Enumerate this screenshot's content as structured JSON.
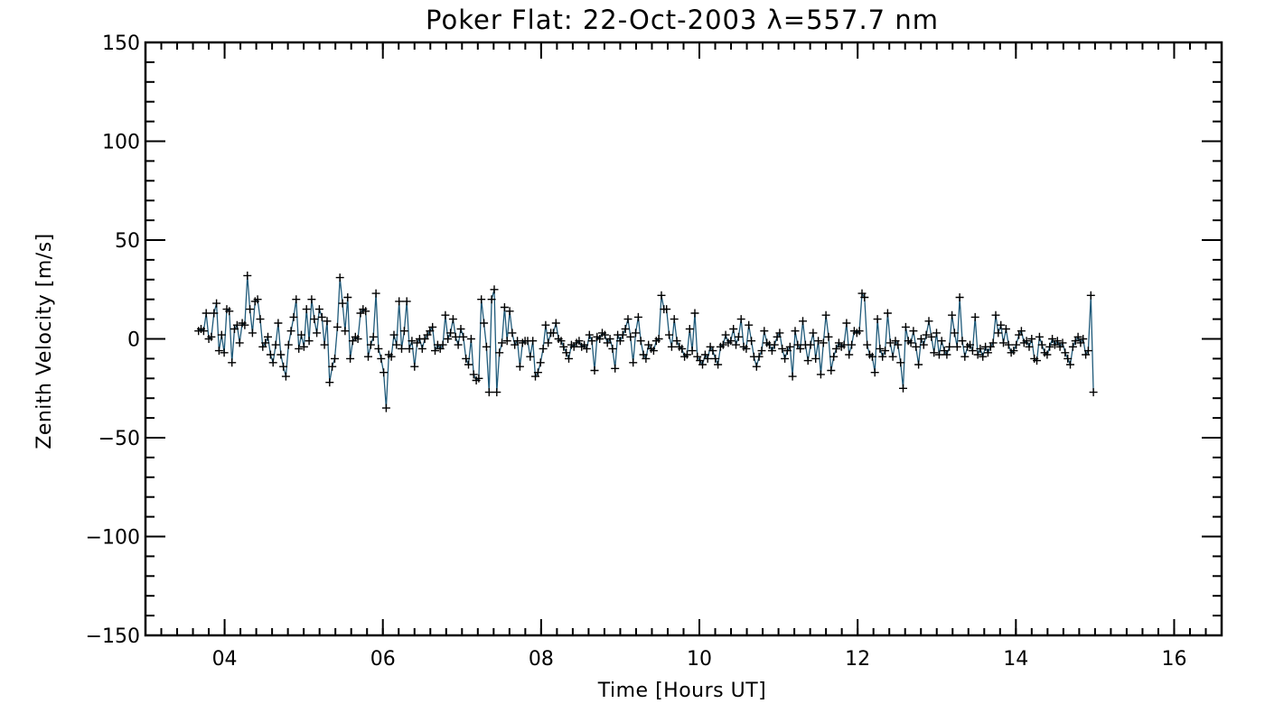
{
  "chart_data": {
    "type": "line",
    "title": "Poker Flat: 22-Oct-2003 λ=557.7 nm",
    "xlabel": "Time [Hours UT]",
    "ylabel": "Zenith Velocity [m/s]",
    "xlim": [
      3.0,
      16.6
    ],
    "ylim": [
      -150,
      150
    ],
    "x_ticks": [
      4,
      6,
      8,
      10,
      12,
      14,
      16
    ],
    "x_tick_labels": [
      "04",
      "06",
      "08",
      "10",
      "12",
      "14",
      "16"
    ],
    "y_ticks": [
      -150,
      -100,
      -50,
      0,
      50,
      100,
      150
    ],
    "y_tick_labels": [
      "−150",
      "−100",
      "−50",
      "0",
      "50",
      "100",
      "150"
    ],
    "x_minor_step": 0.2,
    "y_minor_step": 10,
    "grid": false,
    "marker": "plus",
    "series": [
      {
        "name": "Zenith Velocity",
        "color": "#1f5a7a",
        "marker_color": "#000000",
        "x_start": 3.67,
        "x_step": 0.0325,
        "values": [
          4,
          5,
          4,
          13,
          0,
          1,
          13,
          18,
          -6,
          2,
          -7,
          15,
          14,
          -12,
          5,
          7,
          -2,
          8,
          7,
          32,
          15,
          3,
          19,
          20,
          10,
          -4,
          -2,
          1,
          -8,
          -12,
          -3,
          8,
          -8,
          -14,
          -19,
          -3,
          4,
          11,
          20,
          -5,
          2,
          -4,
          15,
          -1,
          20,
          10,
          3,
          15,
          11,
          -3,
          9,
          -22,
          -14,
          -10,
          6,
          31,
          18,
          4,
          21,
          -10,
          -1,
          1,
          0,
          13,
          15,
          14,
          -9,
          -3,
          1,
          23,
          -5,
          -10,
          -17,
          -35,
          -8,
          -9,
          2,
          -3,
          19,
          -5,
          4,
          19,
          -5,
          -1,
          -14,
          -2,
          0,
          -5,
          0,
          2,
          4,
          6,
          -6,
          -3,
          -5,
          -3,
          12,
          0,
          3,
          10,
          1,
          -3,
          5,
          1,
          -10,
          -13,
          0,
          -18,
          -21,
          -20,
          20,
          8,
          -4,
          -27,
          20,
          25,
          -27,
          -7,
          -2,
          16,
          -1,
          14,
          3,
          -3,
          -1,
          -14,
          -2,
          -1,
          -1,
          -9,
          -1,
          -19,
          -17,
          -12,
          -5,
          7,
          -2,
          3,
          3,
          8,
          0,
          -1,
          -4,
          -7,
          -10,
          -3,
          -4,
          -2,
          -1,
          -4,
          -3,
          -5,
          2,
          -1,
          -16,
          1,
          0,
          3,
          2,
          -2,
          0,
          -5,
          -15,
          2,
          -1,
          2,
          5,
          10,
          1,
          -12,
          3,
          11,
          -1,
          -8,
          -10,
          -3,
          -5,
          -6,
          -1,
          0,
          22,
          15,
          15,
          2,
          -4,
          10,
          -1,
          -4,
          -5,
          -9,
          -8,
          5,
          -6,
          13,
          -9,
          -11,
          -13,
          -8,
          -10,
          -4,
          -6,
          -10,
          -13,
          -4,
          -3,
          2,
          -2,
          -1,
          5,
          -3,
          1,
          10,
          -4,
          -5,
          7,
          -1,
          -9,
          -14,
          -9,
          -6,
          4,
          -2,
          -3,
          -6,
          -3,
          1,
          3,
          -5,
          -10,
          -6,
          -4,
          -19,
          4,
          -3,
          -5,
          9,
          -3,
          -11,
          -3,
          3,
          -10,
          -1,
          -18,
          -2,
          12,
          1,
          -16,
          -9,
          -5,
          -2,
          -4,
          -3,
          8,
          -8,
          -3,
          4,
          3,
          4,
          23,
          21,
          -3,
          -8,
          -9,
          -17,
          10,
          -5,
          -9,
          -6,
          13,
          -2,
          -9,
          -1,
          -3,
          -12,
          -25,
          6,
          -1,
          -2,
          4,
          -4,
          -13,
          0,
          -3,
          2,
          9,
          1,
          -7,
          3,
          -8,
          -1,
          -6,
          -8,
          -4,
          12,
          3,
          -4,
          21,
          -1,
          -9,
          -4,
          -3,
          -6,
          11,
          -8,
          -5,
          -9,
          -4,
          -7,
          -4,
          -2,
          12,
          3,
          7,
          -2,
          5,
          -3,
          -7,
          -6,
          -3,
          2,
          4,
          -2,
          -1,
          -4,
          0,
          -10,
          -11,
          1,
          -3,
          -7,
          -8,
          -4,
          0,
          -3,
          -1,
          -4,
          -2,
          -7,
          -10,
          -13,
          -4,
          -1,
          1,
          -2,
          0,
          -8,
          -6,
          22,
          -27
        ]
      }
    ]
  }
}
